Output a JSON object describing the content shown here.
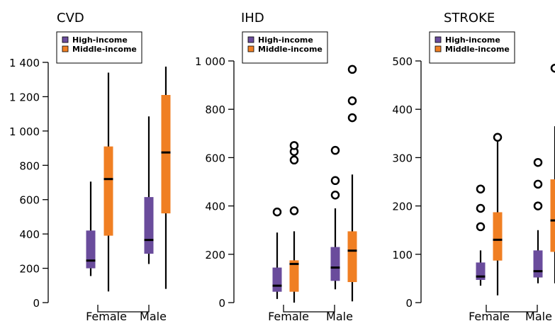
{
  "colors": {
    "high_income": "#6a4c9c",
    "middle_income": "#f07f23",
    "axis": "#000000",
    "background": "#ffffff"
  },
  "chart_data": [
    {
      "type": "boxplot",
      "title": "CVD",
      "xlabel": "",
      "ylabel": "",
      "categories": [
        "Female",
        "Male"
      ],
      "ylim": [
        0,
        1400
      ],
      "yticks": [
        0,
        200,
        400,
        600,
        800,
        1000,
        1200,
        1400
      ],
      "ytick_labels": [
        "0",
        "200",
        "400",
        "600",
        "800",
        "1 000",
        "1 200",
        "1 400"
      ],
      "legend": {
        "position": "top-left",
        "entries": [
          "High-income",
          "Middle-income"
        ]
      },
      "series": [
        {
          "name": "High-income",
          "color": "#6a4c9c",
          "boxes": [
            {
              "category": "Female",
              "whisker_low": 155,
              "q1": 200,
              "median": 245,
              "q3": 420,
              "whisker_high": 705,
              "outliers": []
            },
            {
              "category": "Male",
              "whisker_low": 225,
              "q1": 285,
              "median": 365,
              "q3": 615,
              "whisker_high": 1085,
              "outliers": []
            }
          ]
        },
        {
          "name": "Middle-income",
          "color": "#f07f23",
          "boxes": [
            {
              "category": "Female",
              "whisker_low": 65,
              "q1": 390,
              "median": 720,
              "q3": 910,
              "whisker_high": 1340,
              "outliers": []
            },
            {
              "category": "Male",
              "whisker_low": 80,
              "q1": 520,
              "median": 875,
              "q3": 1210,
              "whisker_high": 1375,
              "outliers": []
            }
          ]
        }
      ]
    },
    {
      "type": "boxplot",
      "title": "IHD",
      "xlabel": "",
      "ylabel": "",
      "categories": [
        "Female",
        "Male"
      ],
      "ylim": [
        0,
        1000
      ],
      "yticks": [
        0,
        200,
        400,
        600,
        800,
        1000
      ],
      "ytick_labels": [
        "0",
        "200",
        "400",
        "600",
        "800",
        "1 000"
      ],
      "legend": {
        "position": "top-left",
        "entries": [
          "High-income",
          "Middle-income"
        ]
      },
      "series": [
        {
          "name": "High-income",
          "color": "#6a4c9c",
          "boxes": [
            {
              "category": "Female",
              "whisker_low": 15,
              "q1": 45,
              "median": 70,
              "q3": 145,
              "whisker_high": 290,
              "outliers": [
                375
              ]
            },
            {
              "category": "Male",
              "whisker_low": 55,
              "q1": 90,
              "median": 145,
              "q3": 230,
              "whisker_high": 390,
              "outliers": [
                445,
                505,
                630
              ]
            }
          ]
        },
        {
          "name": "Middle-income",
          "color": "#f07f23",
          "boxes": [
            {
              "category": "Female",
              "whisker_low": 0,
              "q1": 45,
              "median": 160,
              "q3": 175,
              "whisker_high": 295,
              "outliers": [
                380,
                590,
                625,
                650
              ]
            },
            {
              "category": "Male",
              "whisker_low": 5,
              "q1": 85,
              "median": 215,
              "q3": 295,
              "whisker_high": 530,
              "outliers": [
                765,
                835,
                965
              ]
            }
          ]
        }
      ]
    },
    {
      "type": "boxplot",
      "title": "STROKE",
      "xlabel": "",
      "ylabel": "",
      "categories": [
        "Female",
        "Male"
      ],
      "ylim": [
        0,
        500
      ],
      "yticks": [
        0,
        100,
        200,
        300,
        400,
        500
      ],
      "ytick_labels": [
        "0",
        "100",
        "200",
        "300",
        "400",
        "500"
      ],
      "legend": {
        "position": "top-left",
        "entries": [
          "High-income",
          "Middle-income"
        ]
      },
      "series": [
        {
          "name": "High-income",
          "color": "#6a4c9c",
          "boxes": [
            {
              "category": "Female",
              "whisker_low": 35,
              "q1": 47,
              "median": 54,
              "q3": 83,
              "whisker_high": 108,
              "outliers": [
                157,
                195,
                235
              ]
            },
            {
              "category": "Male",
              "whisker_low": 40,
              "q1": 52,
              "median": 65,
              "q3": 108,
              "whisker_high": 150,
              "outliers": [
                200,
                245,
                290
              ]
            }
          ]
        },
        {
          "name": "Middle-income",
          "color": "#f07f23",
          "boxes": [
            {
              "category": "Female",
              "whisker_low": 15,
              "q1": 87,
              "median": 130,
              "q3": 187,
              "whisker_high": 335,
              "outliers": [
                342
              ]
            },
            {
              "category": "Male",
              "whisker_low": 40,
              "q1": 105,
              "median": 170,
              "q3": 255,
              "whisker_high": 365,
              "outliers": [
                485
              ]
            }
          ]
        }
      ]
    }
  ]
}
